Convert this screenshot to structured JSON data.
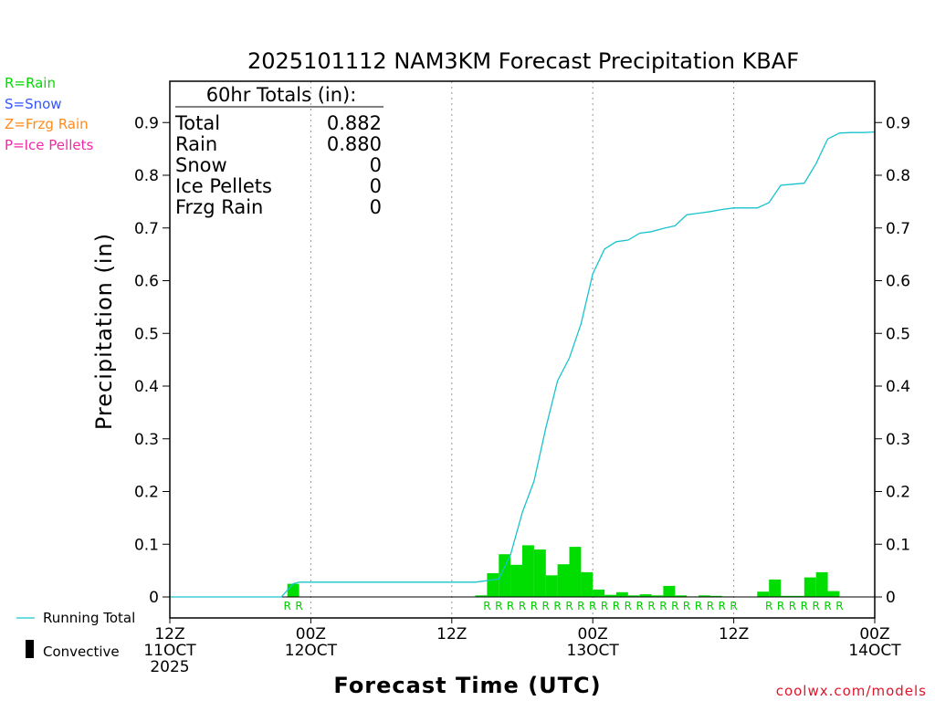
{
  "chart_data": {
    "type": "bar",
    "title": "2025101112 NAM3KM Forecast Precipitation KBAF",
    "ylabel": "Precipitation (in)",
    "xlabel": "Forecast Time (UTC)",
    "ylim": [
      0,
      0.95
    ],
    "yticks": [
      0,
      0.1,
      0.2,
      0.3,
      0.4,
      0.5,
      0.6,
      0.7,
      0.8,
      0.9
    ],
    "ytick_labels": [
      "0",
      "0.1",
      "0.2",
      "0.3",
      "0.4",
      "0.5",
      "0.6",
      "0.7",
      "0.8",
      "0.9"
    ],
    "xlim": [
      0,
      60
    ],
    "xticks": [
      {
        "hour": 0,
        "lines": [
          "12Z",
          "11OCT",
          "2025"
        ]
      },
      {
        "hour": 12,
        "lines": [
          "00Z",
          "12OCT"
        ]
      },
      {
        "hour": 24,
        "lines": [
          "12Z"
        ]
      },
      {
        "hour": 36,
        "lines": [
          "00Z",
          "13OCT"
        ]
      },
      {
        "hour": 48,
        "lines": [
          "12Z"
        ]
      },
      {
        "hour": 60,
        "lines": [
          "00Z",
          "14OCT"
        ]
      }
    ],
    "series": [
      {
        "name": "Hourly Precipitation",
        "color": "#00dd00",
        "hours": [
          10.5,
          26.5,
          27.5,
          28.5,
          29.5,
          30.5,
          31.5,
          32.5,
          33.5,
          34.5,
          35.5,
          36.5,
          37.5,
          38.5,
          39.5,
          40.5,
          41.5,
          42.5,
          43.5,
          44.5,
          45.5,
          46.5,
          47.5,
          50.5,
          51.5,
          52.5,
          53.5,
          54.5,
          55.5,
          56.5
        ],
        "values": [
          0.025,
          0.003,
          0.045,
          0.081,
          0.061,
          0.098,
          0.09,
          0.041,
          0.062,
          0.095,
          0.047,
          0.014,
          0.004,
          0.009,
          0.003,
          0.005,
          0.003,
          0.021,
          0.003,
          0.001,
          0.003,
          0.002,
          0.001,
          0.01,
          0.033,
          0.002,
          0.002,
          0.037,
          0.047,
          0.011
        ]
      },
      {
        "name": "Running Total",
        "color": "#19c3cc",
        "type": "line",
        "x": [
          0,
          9.5,
          10.5,
          11,
          12,
          26,
          28,
          29,
          30,
          31,
          32,
          33,
          34,
          35,
          36,
          37,
          38,
          39,
          40,
          41,
          42,
          43,
          44,
          45,
          46,
          47,
          48,
          49,
          50,
          51,
          52,
          53,
          54,
          55,
          56,
          57,
          58,
          59,
          60
        ],
        "y": [
          0,
          0,
          0.025,
          0.028,
          0.028,
          0.028,
          0.034,
          0.08,
          0.16,
          0.22,
          0.32,
          0.41,
          0.453,
          0.518,
          0.613,
          0.66,
          0.674,
          0.677,
          0.69,
          0.693,
          0.699,
          0.704,
          0.725,
          0.728,
          0.731,
          0.735,
          0.738,
          0.738,
          0.738,
          0.748,
          0.781,
          0.783,
          0.785,
          0.822,
          0.869,
          0.88,
          0.881,
          0.881,
          0.882
        ]
      }
    ],
    "precip_type_hours": [
      10,
      11,
      27,
      28,
      29,
      30,
      31,
      32,
      33,
      34,
      35,
      36,
      37,
      38,
      39,
      40,
      41,
      42,
      43,
      44,
      45,
      46,
      47,
      48,
      51,
      52,
      53,
      54,
      55,
      56,
      57
    ],
    "precip_type_letter": "R"
  },
  "totals": {
    "heading": "60hr Totals (in):",
    "rows": [
      {
        "label": "Total",
        "value": "0.882"
      },
      {
        "label": "Rain",
        "value": "0.880"
      },
      {
        "label": "Snow",
        "value": "0"
      },
      {
        "label": "Ice Pellets",
        "value": "0"
      },
      {
        "label": "Frzg Rain",
        "value": "0"
      }
    ]
  },
  "key": {
    "rain": {
      "text": "R=Rain",
      "color": "#00dd00"
    },
    "snow": {
      "text": "S=Snow",
      "color": "#3355ff"
    },
    "frzg": {
      "text": "Z=Frzg Rain",
      "color": "#ff8c1a"
    },
    "ice": {
      "text": "P=Ice Pellets",
      "color": "#ee2aa6"
    }
  },
  "legend": {
    "running_total": "Running Total",
    "convective": "Convective"
  },
  "credit": "coolwx.com/models"
}
